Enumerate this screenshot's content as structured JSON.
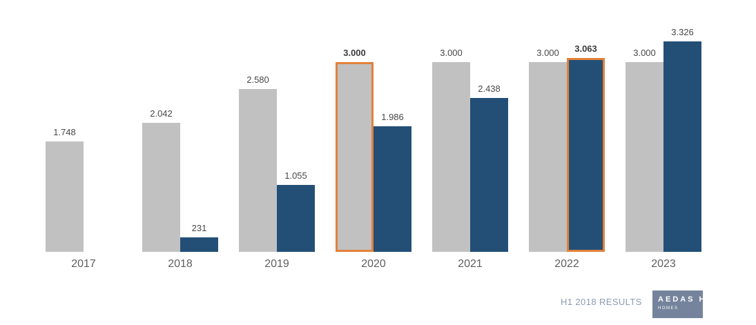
{
  "page": {
    "background": "#ffffff"
  },
  "chart_data": {
    "type": "bar",
    "title": "",
    "xlabel": "",
    "ylabel": "",
    "grid": false,
    "legend": false,
    "ylim": [
      0,
      3326
    ],
    "categories": [
      "2017",
      "2018",
      "2019",
      "2020",
      "2021",
      "2022",
      "2023"
    ],
    "series": [
      {
        "name": "gray",
        "color": "#C1C1C1",
        "values": [
          1748,
          2042,
          2580,
          3000,
          3000,
          3000,
          3000
        ],
        "labels": [
          "1.748",
          "2.042",
          "2.580",
          "3.000",
          "3.000",
          "3.000",
          "3.000"
        ]
      },
      {
        "name": "blue",
        "color": "#234F77",
        "values": [
          null,
          231,
          1055,
          1986,
          2438,
          3063,
          3326
        ],
        "labels": [
          null,
          "231",
          "1.055",
          "1.986",
          "2.438",
          "3.063",
          "3.326"
        ]
      }
    ],
    "highlights": [
      {
        "category": "2020",
        "series": "gray",
        "outline_color": "#E2813A",
        "bold_label": true
      },
      {
        "category": "2022",
        "series": "blue",
        "outline_color": "#E2813A",
        "bold_label": true
      }
    ]
  },
  "footer": {
    "caption": "H1 2018 RESULTS",
    "brand": {
      "display_text": "AEDAS H",
      "sub_text": "HOMES",
      "box_color": "#75849C",
      "text_color": "#ffffff"
    }
  },
  "style_colors": {
    "value_label": "#474747",
    "year_label": "#5E5E5E",
    "caption": "#8C9BB1"
  }
}
